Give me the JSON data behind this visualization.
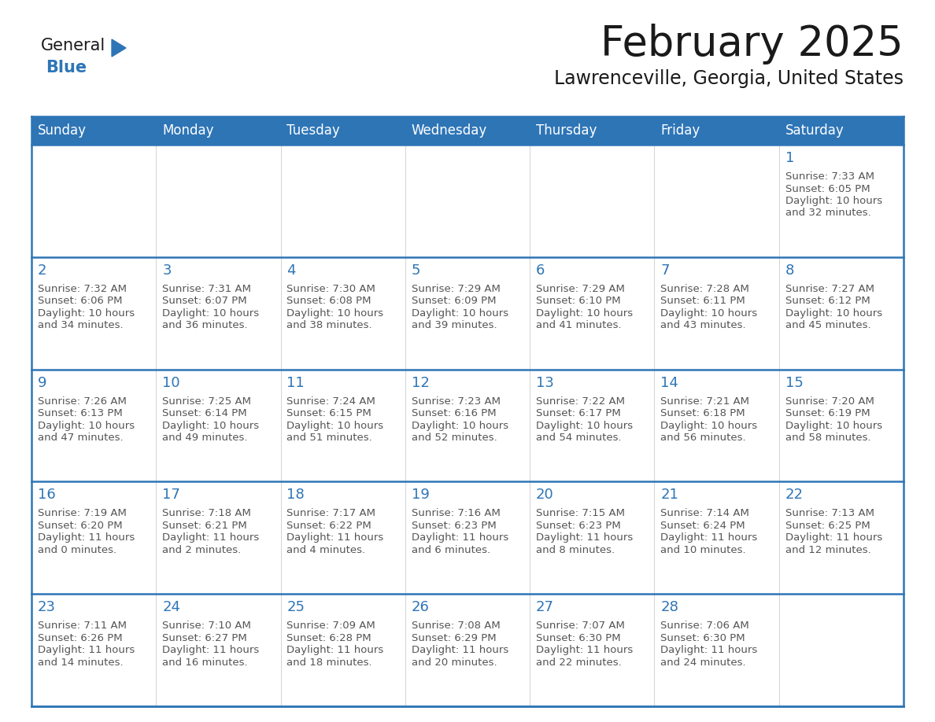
{
  "title": "February 2025",
  "subtitle": "Lawrenceville, Georgia, United States",
  "days_of_week": [
    "Sunday",
    "Monday",
    "Tuesday",
    "Wednesday",
    "Thursday",
    "Friday",
    "Saturday"
  ],
  "header_bg": "#2E75B6",
  "header_text_color": "#FFFFFF",
  "cell_bg": "#FFFFFF",
  "border_color": "#2E75B6",
  "day_number_color": "#2E75B6",
  "info_text_color": "#555555",
  "title_color": "#1a1a1a",
  "subtitle_color": "#1a1a1a",
  "logo_general_color": "#1a1a1a",
  "logo_blue_color": "#2E75B6",
  "calendar_data": [
    [
      null,
      null,
      null,
      null,
      null,
      null,
      {
        "day": 1,
        "sunrise": "7:33 AM",
        "sunset": "6:05 PM",
        "daylight_line1": "10 hours",
        "daylight_line2": "and 32 minutes."
      }
    ],
    [
      {
        "day": 2,
        "sunrise": "7:32 AM",
        "sunset": "6:06 PM",
        "daylight_line1": "10 hours",
        "daylight_line2": "and 34 minutes."
      },
      {
        "day": 3,
        "sunrise": "7:31 AM",
        "sunset": "6:07 PM",
        "daylight_line1": "10 hours",
        "daylight_line2": "and 36 minutes."
      },
      {
        "day": 4,
        "sunrise": "7:30 AM",
        "sunset": "6:08 PM",
        "daylight_line1": "10 hours",
        "daylight_line2": "and 38 minutes."
      },
      {
        "day": 5,
        "sunrise": "7:29 AM",
        "sunset": "6:09 PM",
        "daylight_line1": "10 hours",
        "daylight_line2": "and 39 minutes."
      },
      {
        "day": 6,
        "sunrise": "7:29 AM",
        "sunset": "6:10 PM",
        "daylight_line1": "10 hours",
        "daylight_line2": "and 41 minutes."
      },
      {
        "day": 7,
        "sunrise": "7:28 AM",
        "sunset": "6:11 PM",
        "daylight_line1": "10 hours",
        "daylight_line2": "and 43 minutes."
      },
      {
        "day": 8,
        "sunrise": "7:27 AM",
        "sunset": "6:12 PM",
        "daylight_line1": "10 hours",
        "daylight_line2": "and 45 minutes."
      }
    ],
    [
      {
        "day": 9,
        "sunrise": "7:26 AM",
        "sunset": "6:13 PM",
        "daylight_line1": "10 hours",
        "daylight_line2": "and 47 minutes."
      },
      {
        "day": 10,
        "sunrise": "7:25 AM",
        "sunset": "6:14 PM",
        "daylight_line1": "10 hours",
        "daylight_line2": "and 49 minutes."
      },
      {
        "day": 11,
        "sunrise": "7:24 AM",
        "sunset": "6:15 PM",
        "daylight_line1": "10 hours",
        "daylight_line2": "and 51 minutes."
      },
      {
        "day": 12,
        "sunrise": "7:23 AM",
        "sunset": "6:16 PM",
        "daylight_line1": "10 hours",
        "daylight_line2": "and 52 minutes."
      },
      {
        "day": 13,
        "sunrise": "7:22 AM",
        "sunset": "6:17 PM",
        "daylight_line1": "10 hours",
        "daylight_line2": "and 54 minutes."
      },
      {
        "day": 14,
        "sunrise": "7:21 AM",
        "sunset": "6:18 PM",
        "daylight_line1": "10 hours",
        "daylight_line2": "and 56 minutes."
      },
      {
        "day": 15,
        "sunrise": "7:20 AM",
        "sunset": "6:19 PM",
        "daylight_line1": "10 hours",
        "daylight_line2": "and 58 minutes."
      }
    ],
    [
      {
        "day": 16,
        "sunrise": "7:19 AM",
        "sunset": "6:20 PM",
        "daylight_line1": "11 hours",
        "daylight_line2": "and 0 minutes."
      },
      {
        "day": 17,
        "sunrise": "7:18 AM",
        "sunset": "6:21 PM",
        "daylight_line1": "11 hours",
        "daylight_line2": "and 2 minutes."
      },
      {
        "day": 18,
        "sunrise": "7:17 AM",
        "sunset": "6:22 PM",
        "daylight_line1": "11 hours",
        "daylight_line2": "and 4 minutes."
      },
      {
        "day": 19,
        "sunrise": "7:16 AM",
        "sunset": "6:23 PM",
        "daylight_line1": "11 hours",
        "daylight_line2": "and 6 minutes."
      },
      {
        "day": 20,
        "sunrise": "7:15 AM",
        "sunset": "6:23 PM",
        "daylight_line1": "11 hours",
        "daylight_line2": "and 8 minutes."
      },
      {
        "day": 21,
        "sunrise": "7:14 AM",
        "sunset": "6:24 PM",
        "daylight_line1": "11 hours",
        "daylight_line2": "and 10 minutes."
      },
      {
        "day": 22,
        "sunrise": "7:13 AM",
        "sunset": "6:25 PM",
        "daylight_line1": "11 hours",
        "daylight_line2": "and 12 minutes."
      }
    ],
    [
      {
        "day": 23,
        "sunrise": "7:11 AM",
        "sunset": "6:26 PM",
        "daylight_line1": "11 hours",
        "daylight_line2": "and 14 minutes."
      },
      {
        "day": 24,
        "sunrise": "7:10 AM",
        "sunset": "6:27 PM",
        "daylight_line1": "11 hours",
        "daylight_line2": "and 16 minutes."
      },
      {
        "day": 25,
        "sunrise": "7:09 AM",
        "sunset": "6:28 PM",
        "daylight_line1": "11 hours",
        "daylight_line2": "and 18 minutes."
      },
      {
        "day": 26,
        "sunrise": "7:08 AM",
        "sunset": "6:29 PM",
        "daylight_line1": "11 hours",
        "daylight_line2": "and 20 minutes."
      },
      {
        "day": 27,
        "sunrise": "7:07 AM",
        "sunset": "6:30 PM",
        "daylight_line1": "11 hours",
        "daylight_line2": "and 22 minutes."
      },
      {
        "day": 28,
        "sunrise": "7:06 AM",
        "sunset": "6:30 PM",
        "daylight_line1": "11 hours",
        "daylight_line2": "and 24 minutes."
      },
      null
    ]
  ]
}
